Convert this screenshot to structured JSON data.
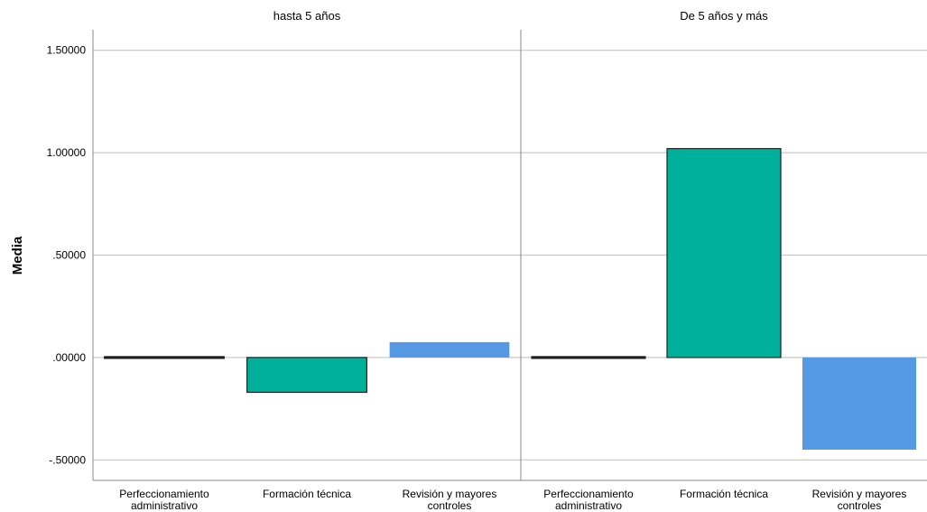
{
  "chart_data": {
    "type": "bar",
    "ylabel": "Media",
    "ylim": [
      -0.6,
      1.6
    ],
    "yticks": [
      {
        "value": 1.5,
        "label": "1.50000"
      },
      {
        "value": 1.0,
        "label": "1.00000"
      },
      {
        "value": 0.5,
        "label": ".50000"
      },
      {
        "value": 0.0,
        "label": ".00000"
      },
      {
        "value": -0.5,
        "label": "-.50000"
      }
    ],
    "grid": true,
    "categories": [
      [
        "Perfeccionamiento",
        "administrativo"
      ],
      [
        "Formación técnica"
      ],
      [
        "Revisión y mayores",
        "controles"
      ]
    ],
    "colors": [
      "#1a0f2e",
      "#00b09a",
      "#5599e4"
    ],
    "panels": [
      {
        "title": "hasta 5 años",
        "values": [
          0.0,
          -0.17,
          0.075
        ]
      },
      {
        "title": "De 5 años y más",
        "values": [
          -0.005,
          1.02,
          -0.45
        ]
      }
    ]
  }
}
